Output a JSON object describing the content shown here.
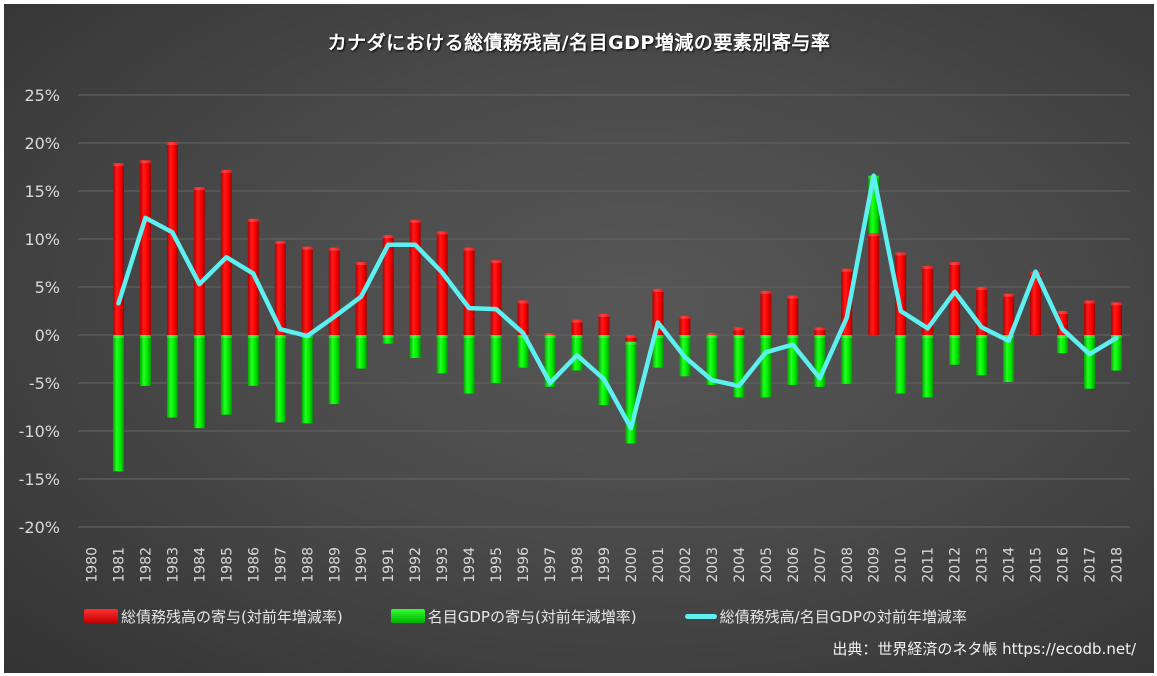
{
  "title": "カナダにおける総債務残高/名目GDP増減の要素別寄与率",
  "legend": {
    "debt": "総債務残高の寄与(対前年増減率)",
    "gdp": "名目GDPの寄与(対前年減増率)",
    "ratio": "総債務残高/名目GDPの対前年増減率"
  },
  "source": "出典：世界経済のネタ帳 https://ecodb.net/",
  "colors": {
    "debt": "#ff0000",
    "gdp": "#00e600",
    "ratio": "#5ef0f0",
    "grid": "#5f5f5f",
    "text": "#d9d9d9"
  },
  "chart_data": {
    "type": "bar",
    "subtype": "stacked bar + line",
    "title": "カナダにおける総債務残高/名目GDP増減の要素別寄与率",
    "xlabel": "",
    "ylabel": "",
    "ylim": [
      -20,
      25
    ],
    "yticks": [
      "25%",
      "20%",
      "15%",
      "10%",
      "5%",
      "0%",
      "-5%",
      "-10%",
      "-15%",
      "-20%"
    ],
    "ytick_values": [
      25,
      20,
      15,
      10,
      5,
      0,
      -5,
      -10,
      -15,
      -20
    ],
    "grid": true,
    "legend_position": "bottom",
    "categories": [
      "1980",
      "1981",
      "1982",
      "1983",
      "1984",
      "1985",
      "1986",
      "1987",
      "1988",
      "1989",
      "1990",
      "1991",
      "1992",
      "1993",
      "1994",
      "1995",
      "1996",
      "1997",
      "1998",
      "1999",
      "2000",
      "2001",
      "2002",
      "2003",
      "2004",
      "2005",
      "2006",
      "2007",
      "2008",
      "2009",
      "2010",
      "2011",
      "2012",
      "2013",
      "2014",
      "2015",
      "2016",
      "2017",
      "2018"
    ],
    "series": [
      {
        "name": "総債務残高の寄与(対前年増減率)",
        "type": "bar",
        "values": [
          null,
          17.9,
          18.2,
          20.1,
          15.4,
          17.2,
          12.1,
          9.8,
          9.2,
          9.1,
          7.6,
          10.4,
          12.0,
          10.8,
          9.1,
          7.8,
          3.6,
          0.2,
          1.6,
          2.2,
          -0.7,
          4.8,
          2.0,
          0.2,
          0.8,
          4.6,
          4.1,
          0.8,
          6.9,
          10.6,
          8.6,
          7.2,
          7.6,
          5.0,
          4.3,
          6.6,
          2.5,
          3.6,
          3.4
        ]
      },
      {
        "name": "名目GDPの寄与(対前年減増率)",
        "type": "bar",
        "values": [
          null,
          -14.2,
          -5.3,
          -8.6,
          -9.7,
          -8.3,
          -5.3,
          -9.1,
          -9.2,
          -7.2,
          -3.5,
          -0.9,
          -2.4,
          -4.0,
          -6.1,
          -5.0,
          -3.4,
          -5.4,
          -3.7,
          -7.3,
          -10.6,
          -3.4,
          -4.3,
          -5.2,
          -6.5,
          -6.5,
          -5.2,
          -5.4,
          -5.1,
          6.0,
          -6.1,
          -6.5,
          -3.1,
          -4.2,
          -4.9,
          0.0,
          -1.9,
          -5.6,
          -3.7
        ]
      },
      {
        "name": "総債務残高/名目GDPの対前年増減率",
        "type": "line",
        "values": [
          null,
          3.3,
          12.2,
          10.7,
          5.3,
          8.1,
          6.4,
          0.6,
          -0.1,
          1.9,
          4.0,
          9.4,
          9.4,
          6.5,
          2.8,
          2.7,
          0.2,
          -5.0,
          -2.1,
          -4.6,
          -9.7,
          1.3,
          -2.3,
          -4.7,
          -5.3,
          -1.8,
          -1.0,
          -4.5,
          1.8,
          16.6,
          2.5,
          0.7,
          4.5,
          0.8,
          -0.6,
          6.6,
          0.6,
          -2.0,
          -0.3
        ]
      }
    ]
  }
}
